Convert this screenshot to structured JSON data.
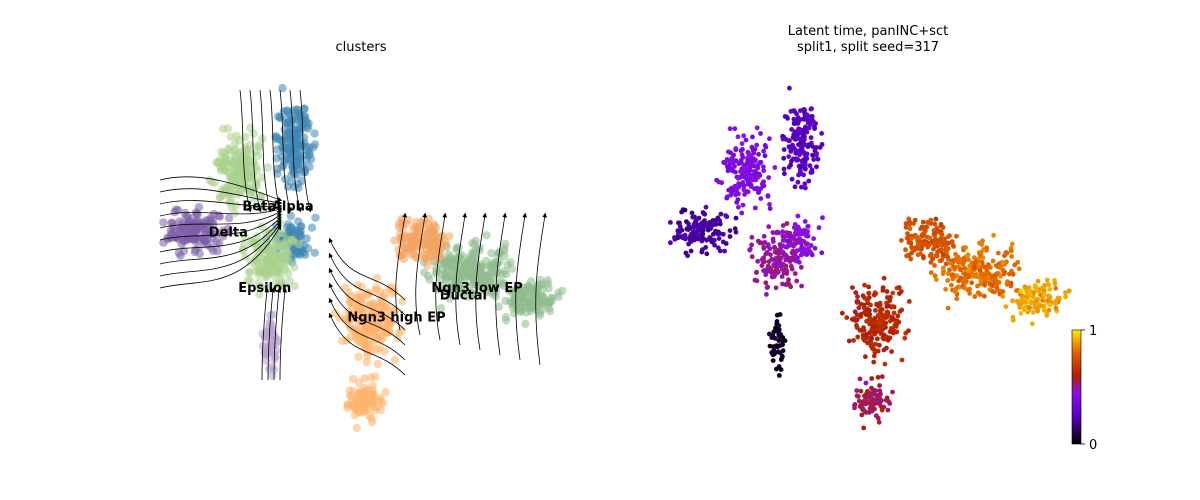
{
  "chart_data": [
    {
      "type": "scatter",
      "title": "clusters",
      "xlabel": "",
      "ylabel": "",
      "overlay": "velocity streamlines",
      "grid": false,
      "cluster_labels": [
        {
          "name": "Beta",
          "x": 0.22,
          "y": 0.62
        },
        {
          "name": "Alpha",
          "x": 0.29,
          "y": 0.62
        },
        {
          "name": "Delta",
          "x": 0.14,
          "y": 0.55
        },
        {
          "name": "Epsilon",
          "x": 0.21,
          "y": 0.4
        },
        {
          "name": "Ngn3 low EP",
          "x": 0.67,
          "y": 0.4
        },
        {
          "name": "Ductal",
          "x": 0.69,
          "y": 0.38
        },
        {
          "name": "Ngn3 high EP",
          "x": 0.47,
          "y": 0.32
        }
      ],
      "colors": {
        "Ductal": "#8fbc8f",
        "Ngn3 low EP": "#f4a460",
        "Ngn3 high EP": "#ffb26b",
        "Epsilon": "#b9a2cf",
        "Delta": "#7d5ea8",
        "Alpha": "#3f86b5",
        "Beta": "#a9d18e"
      }
    },
    {
      "type": "scatter",
      "title": "Latent time, panINC+sct",
      "subtitle": "split1, split seed=317",
      "colorbar": {
        "min_label": "0",
        "max_label": "1",
        "cmap": "gnuplot"
      },
      "grid": false
    }
  ]
}
